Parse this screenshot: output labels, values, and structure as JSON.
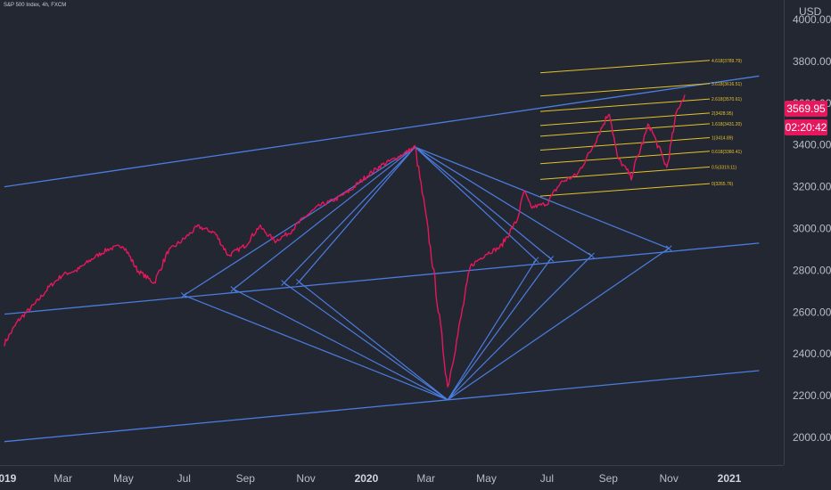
{
  "header": {
    "symbol_line": "S&P 500 Index, 4h, FXCM"
  },
  "chart_data": {
    "type": "line",
    "title": "S&P 500 Index, 4h, FXCM",
    "ylabel": "USD",
    "ylim": [
      1900,
      4040
    ],
    "x_tick_labels": [
      "2019",
      "Mar",
      "May",
      "Jul",
      "Sep",
      "Nov",
      "2020",
      "Mar",
      "May",
      "Jul",
      "Sep",
      "Nov",
      "2021"
    ],
    "y_tick_labels": [
      "2000.00",
      "2200.00",
      "2400.00",
      "2600.00",
      "2800.00",
      "3000.00",
      "3200.00",
      "3400.00",
      "3600.00",
      "3800.00",
      "4000.00"
    ],
    "last_price": "3569.95",
    "countdown": "02:20:42",
    "series": [
      {
        "color": "#e6175c",
        "x": [
          "2019-01-01",
          "2019-01-15",
          "2019-02-01",
          "2019-02-15",
          "2019-03-01",
          "2019-03-15",
          "2019-04-01",
          "2019-04-15",
          "2019-05-01",
          "2019-05-15",
          "2019-06-01",
          "2019-06-15",
          "2019-07-01",
          "2019-07-15",
          "2019-08-01",
          "2019-08-15",
          "2019-09-01",
          "2019-09-15",
          "2019-10-01",
          "2019-10-15",
          "2019-11-01",
          "2019-11-15",
          "2019-12-01",
          "2019-12-15",
          "2020-01-01",
          "2020-01-15",
          "2020-02-01",
          "2020-02-19",
          "2020-03-01",
          "2020-03-10",
          "2020-03-23",
          "2020-04-01",
          "2020-04-15",
          "2020-05-01",
          "2020-05-15",
          "2020-06-01",
          "2020-06-08",
          "2020-06-15",
          "2020-07-01",
          "2020-07-15",
          "2020-08-01",
          "2020-08-15",
          "2020-09-02",
          "2020-09-10",
          "2020-09-24",
          "2020-10-12",
          "2020-10-30",
          "2020-11-09",
          "2020-11-17"
        ],
        "y": [
          2450,
          2560,
          2640,
          2720,
          2780,
          2800,
          2860,
          2900,
          2920,
          2800,
          2740,
          2890,
          2950,
          3010,
          2980,
          2870,
          2920,
          3010,
          2940,
          2980,
          3060,
          3110,
          3140,
          3180,
          3250,
          3300,
          3340,
          3390,
          3060,
          2750,
          2240,
          2460,
          2820,
          2880,
          2910,
          3040,
          3180,
          3100,
          3120,
          3220,
          3260,
          3380,
          3560,
          3340,
          3250,
          3500,
          3290,
          3560,
          3640
        ]
      }
    ],
    "channel_lines": [
      {
        "x": [
          "2019-01-01",
          "2021-01-31"
        ],
        "y": [
          3200,
          3730
        ]
      },
      {
        "x": [
          "2019-01-01",
          "2021-01-31"
        ],
        "y": [
          2590,
          2930
        ]
      },
      {
        "x": [
          "2019-01-01",
          "2021-01-31"
        ],
        "y": [
          1980,
          2320
        ]
      }
    ],
    "gann_apex_top": {
      "x": "2020-02-19",
      "y": 3390
    },
    "gann_apex_bottom": {
      "x": "2020-03-23",
      "y": 2180
    },
    "gann_points": [
      {
        "x": "2019-07-01",
        "y": 2680
      },
      {
        "x": "2019-08-20",
        "y": 2710
      },
      {
        "x": "2019-10-10",
        "y": 2740
      },
      {
        "x": "2019-10-25",
        "y": 2745
      },
      {
        "x": "2020-06-20",
        "y": 2850
      },
      {
        "x": "2020-07-05",
        "y": 2855
      },
      {
        "x": "2020-08-15",
        "y": 2870
      },
      {
        "x": "2020-11-01",
        "y": 2905
      }
    ],
    "fib_levels": [
      {
        "label": "4.618(3789.79)",
        "y": 3775
      },
      {
        "label": "3.618(3616.51)",
        "y": 3664
      },
      {
        "label": "2.618(3570.61)",
        "y": 3590
      },
      {
        "label": "2(3428.95)",
        "y": 3523
      },
      {
        "label": "1.618(3431.20)",
        "y": 3472
      },
      {
        "label": "1(3414.89)",
        "y": 3405
      },
      {
        "label": "0.618(3360.41)",
        "y": 3340
      },
      {
        "label": "0.5(3319.11)",
        "y": 3265
      },
      {
        "label": "0(3265.76)",
        "y": 3185
      }
    ]
  }
}
